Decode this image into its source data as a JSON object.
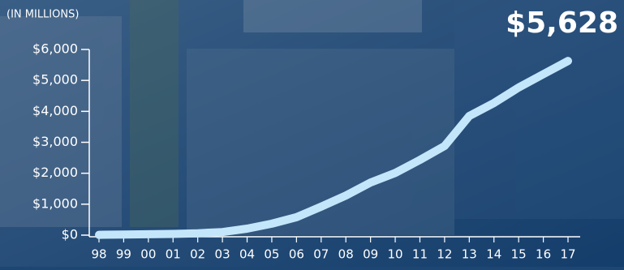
{
  "chart_data": {
    "type": "line",
    "subtitle": "(IN MILLIONS)",
    "categories": [
      "98",
      "99",
      "00",
      "01",
      "02",
      "03",
      "04",
      "05",
      "06",
      "07",
      "08",
      "09",
      "10",
      "11",
      "12",
      "13",
      "14",
      "15",
      "16",
      "17"
    ],
    "values": [
      10,
      20,
      30,
      40,
      60,
      100,
      210,
      370,
      580,
      920,
      1280,
      1700,
      2010,
      2430,
      2880,
      3850,
      4270,
      4770,
      5200,
      5628
    ],
    "value_labels": [
      null,
      null,
      null,
      null,
      null,
      null,
      null,
      null,
      null,
      null,
      null,
      null,
      null,
      null,
      null,
      null,
      null,
      null,
      null,
      "$5,628"
    ],
    "color": "#c4e6fb",
    "ylim": [
      0,
      6000
    ],
    "yticks": [
      {
        "value": 0,
        "label": "$0"
      },
      {
        "value": 1000,
        "label": "$1,000"
      },
      {
        "value": 2000,
        "label": "$2,000"
      },
      {
        "value": 3000,
        "label": "$3,000"
      },
      {
        "value": 4000,
        "label": "$4,000"
      },
      {
        "value": 5000,
        "label": "$5,000"
      },
      {
        "value": 6000,
        "label": "$6,000"
      }
    ]
  }
}
